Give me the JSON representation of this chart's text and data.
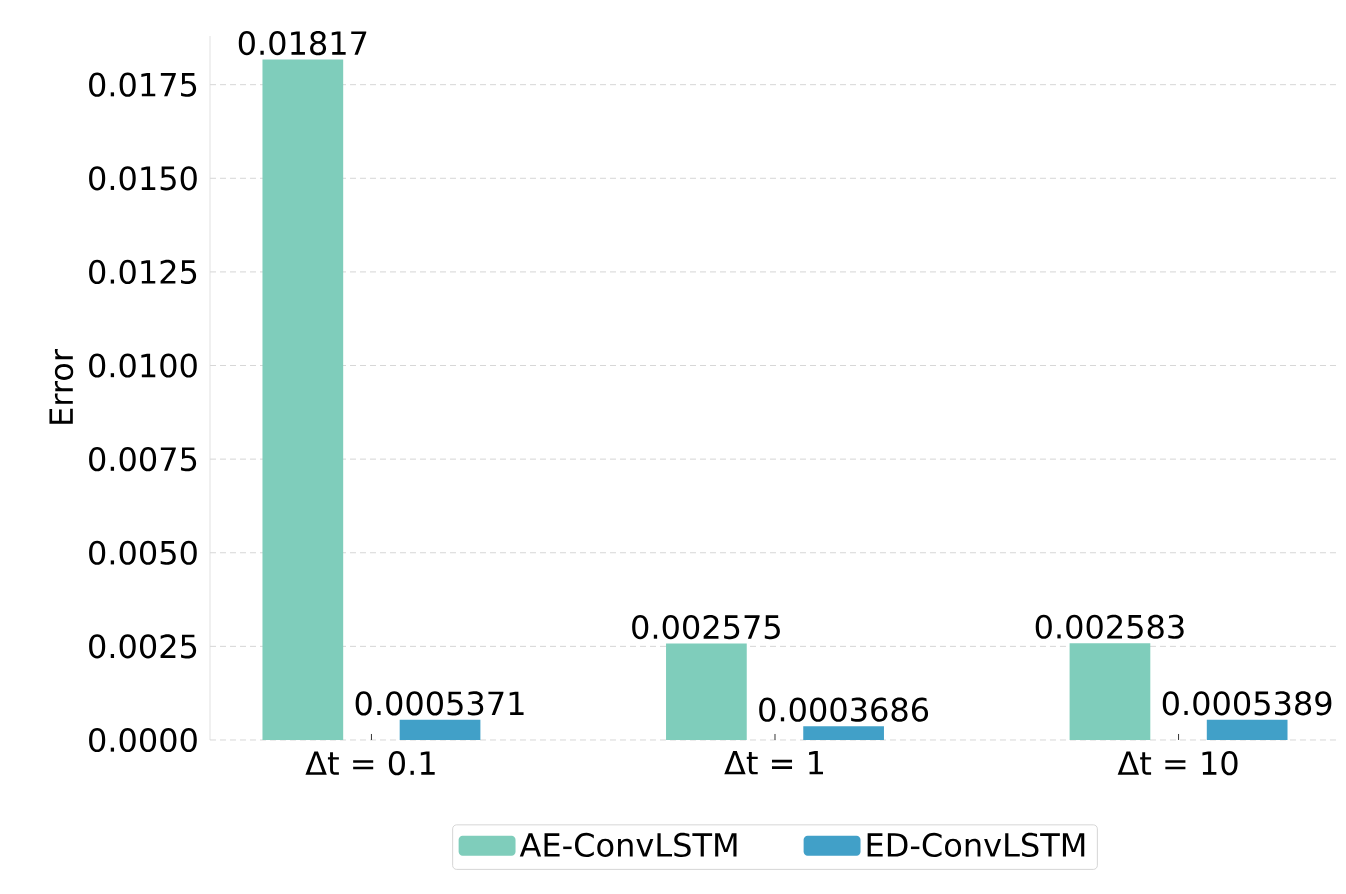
{
  "chart_data": {
    "type": "bar",
    "ylabel": "Error",
    "categories": [
      "Δt = 0.1",
      "Δt = 1",
      "Δt = 10"
    ],
    "series": [
      {
        "name": "AE-ConvLSTM",
        "color": "#7fcdbb",
        "values": [
          0.01817,
          0.002575,
          0.002583
        ]
      },
      {
        "name": "ED-ConvLSTM",
        "color": "#41a0c8",
        "values": [
          0.0005371,
          0.0003686,
          0.0005389
        ]
      }
    ],
    "ylim": [
      0,
      0.0188
    ],
    "yticks": [
      {
        "value": 0,
        "label": "0.0000"
      },
      {
        "value": 0.0025,
        "label": "0.0025"
      },
      {
        "value": 0.005,
        "label": "0.0050"
      },
      {
        "value": 0.0075,
        "label": "0.0075"
      },
      {
        "value": 0.01,
        "label": "0.0100"
      },
      {
        "value": 0.0125,
        "label": "0.0125"
      },
      {
        "value": 0.015,
        "label": "0.0150"
      },
      {
        "value": 0.0175,
        "label": "0.0175"
      }
    ],
    "grid": "y",
    "legend": "bottom",
    "data_labels": true
  }
}
